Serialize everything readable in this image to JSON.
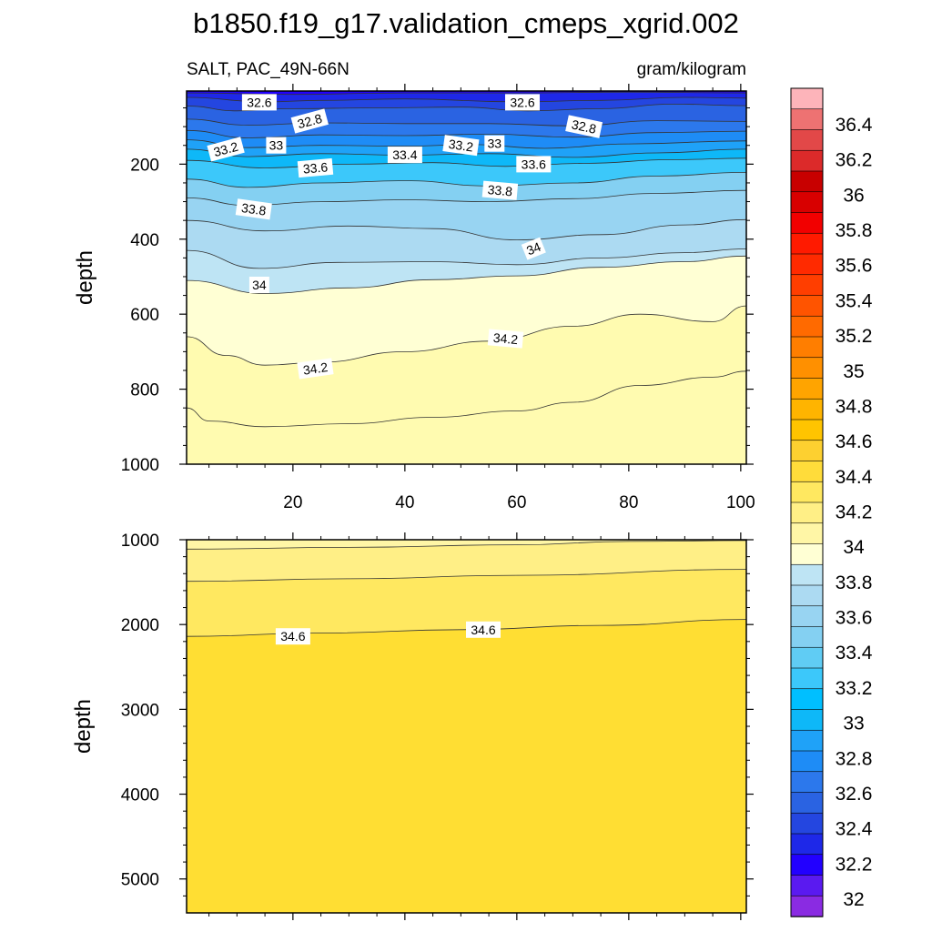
{
  "chart_data": {
    "type": "contour",
    "title": "b1850.f19_g17.validation_cmeps_xgrid.002",
    "variable_label": "SALT, PAC_49N-66N",
    "units": "gram/kilogram",
    "panels": [
      {
        "name": "upper",
        "ylabel": "depth",
        "xlim": [
          1,
          101
        ],
        "ylim": [
          1000,
          5
        ],
        "xticks": [
          "20",
          "40",
          "60",
          "80",
          "100"
        ],
        "yticks": [
          "200",
          "400",
          "600",
          "800",
          "1000"
        ],
        "contour_labels": [
          {
            "text": "32.6",
            "x": 14,
            "y": 35,
            "angle": 0
          },
          {
            "text": "32.6",
            "x": 61,
            "y": 35,
            "angle": 0
          },
          {
            "text": "32.8",
            "x": 23,
            "y": 85,
            "angle": -15
          },
          {
            "text": "32.8",
            "x": 72,
            "y": 100,
            "angle": 12
          },
          {
            "text": "33.2",
            "x": 8,
            "y": 160,
            "angle": -15
          },
          {
            "text": "33",
            "x": 17,
            "y": 150,
            "angle": 0
          },
          {
            "text": "33.2",
            "x": 50,
            "y": 150,
            "angle": 8
          },
          {
            "text": "33",
            "x": 56,
            "y": 145,
            "angle": 0
          },
          {
            "text": "33.4",
            "x": 40,
            "y": 175,
            "angle": 0
          },
          {
            "text": "33.6",
            "x": 24,
            "y": 210,
            "angle": -5
          },
          {
            "text": "33.6",
            "x": 63,
            "y": 200,
            "angle": 0
          },
          {
            "text": "33.8",
            "x": 57,
            "y": 270,
            "angle": 5
          },
          {
            "text": "33.8",
            "x": 13,
            "y": 320,
            "angle": 8
          },
          {
            "text": "34",
            "x": 63,
            "y": 425,
            "angle": -22
          },
          {
            "text": "34",
            "x": 14,
            "y": 522,
            "angle": 0
          },
          {
            "text": "34.2",
            "x": 58,
            "y": 665,
            "angle": 5
          },
          {
            "text": "34.2",
            "x": 24,
            "y": 745,
            "angle": -8
          }
        ]
      },
      {
        "name": "lower",
        "ylabel": "depth",
        "xlim": [
          1,
          101
        ],
        "ylim": [
          5400,
          1000
        ],
        "yticks": [
          "1000",
          "2000",
          "3000",
          "4000",
          "5000"
        ],
        "contour_labels": [
          {
            "text": "34.6",
            "x": 20,
            "y": 2140,
            "angle": 0
          },
          {
            "text": "34.6",
            "x": 54,
            "y": 2060,
            "angle": 0
          }
        ]
      }
    ],
    "colorbar": {
      "levels": [
        "32",
        "32.2",
        "32.4",
        "32.6",
        "32.8",
        "33",
        "33.2",
        "33.4",
        "33.6",
        "33.8",
        "34",
        "34.2",
        "34.4",
        "34.6",
        "34.8",
        "35",
        "35.2",
        "35.4",
        "35.6",
        "35.8",
        "36",
        "36.2",
        "36.4"
      ],
      "colors": [
        "#8A2BE2",
        "#5A1AF0",
        "#2200FF",
        "#1E28E8",
        "#2446E0",
        "#2A63E2",
        "#2C78EC",
        "#1E8CF6",
        "#1FA2F8",
        "#0EB8F8",
        "#00BFFF",
        "#3CC8FA",
        "#60CCF4",
        "#84D0F2",
        "#98D4F2",
        "#ACDAF2",
        "#BEE4F4",
        "#FFFFD4",
        "#FFF6A6",
        "#FFEF86",
        "#FFE860",
        "#FFDC3A",
        "#FDD030",
        "#FFC400",
        "#FFB400",
        "#FFA400",
        "#FF9000",
        "#FF7E00",
        "#FF6A00",
        "#FF5400",
        "#FF3E00",
        "#FF2A00",
        "#FF1A00",
        "#F20000",
        "#D80000",
        "#C80000",
        "#DC2A2A",
        "#E24848",
        "#EE7272",
        "#FDB4BA"
      ]
    }
  }
}
